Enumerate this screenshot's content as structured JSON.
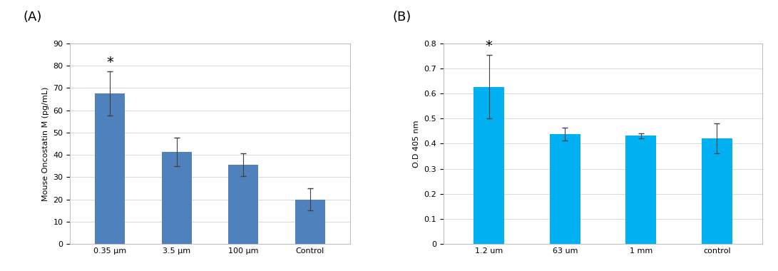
{
  "chart_data": [
    {
      "type": "bar",
      "title": "(A)",
      "y_label": "Mouse Oncostatin M (pg/mL)",
      "categories": [
        "0.35 µm",
        "3.5 µm",
        "100 µm",
        "Control"
      ],
      "values": [
        67.5,
        41.3,
        35.5,
        20
      ],
      "errors": [
        10,
        6.5,
        5,
        5
      ],
      "color": "#4f81bd",
      "ylim": [
        0,
        90
      ],
      "yticks": [
        0,
        10,
        20,
        30,
        40,
        50,
        60,
        70,
        80,
        90
      ],
      "grid": true,
      "annotations": [
        {
          "text": "*",
          "category": "0.35 µm"
        }
      ]
    },
    {
      "type": "bar",
      "title": "(B)",
      "y_label": "O.D 405 nm",
      "categories": [
        "1.2 um",
        "63 um",
        "1 mm",
        "control"
      ],
      "values": [
        0.627,
        0.438,
        0.432,
        0.422
      ],
      "errors": [
        0.127,
        0.026,
        0.01,
        0.06
      ],
      "color": "#00b0f0",
      "ylim": [
        0,
        0.8
      ],
      "yticks": [
        0,
        0.1,
        0.2,
        0.3,
        0.4,
        0.5,
        0.6,
        0.7,
        0.8
      ],
      "grid": true,
      "annotations": [
        {
          "text": "*",
          "category": "1.2 um"
        }
      ]
    }
  ]
}
